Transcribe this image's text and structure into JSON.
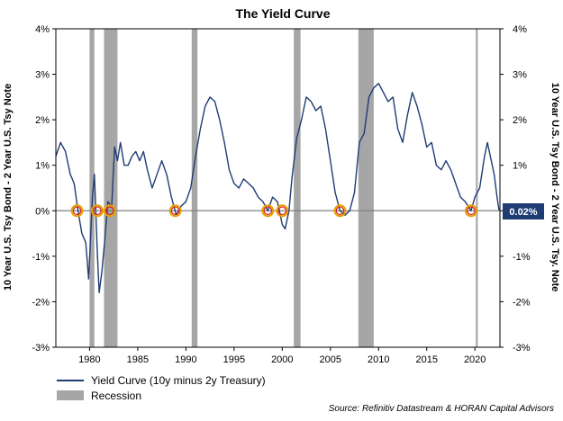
{
  "chart_data": {
    "type": "line",
    "title": "The Yield Curve",
    "ylabel_left": "10 Year U.S. Tsy Bond - 2 Year U.S. Tsy Note",
    "ylabel_right": "10 Year U.S. Tsy Bond - 2 Year U.S. Tsy. Note",
    "xlim": [
      1976.5,
      2022.6
    ],
    "ylim": [
      -3,
      4
    ],
    "yticks": [
      -3,
      -2,
      -1,
      0,
      1,
      2,
      3,
      4
    ],
    "ytick_labels": [
      "-3%",
      "-2%",
      "-1%",
      "0%",
      "1%",
      "2%",
      "3%",
      "4%"
    ],
    "xticks": [
      1980,
      1985,
      1990,
      1995,
      2000,
      2005,
      2010,
      2015,
      2020
    ],
    "xtick_labels": [
      "1980",
      "1985",
      "1990",
      "1995",
      "2000",
      "2005",
      "2010",
      "2015",
      "2020"
    ],
    "recessions": [
      {
        "start": 1980.0,
        "end": 1980.5
      },
      {
        "start": 1981.5,
        "end": 1982.9
      },
      {
        "start": 1990.6,
        "end": 1991.2
      },
      {
        "start": 2001.2,
        "end": 2001.9
      },
      {
        "start": 2007.9,
        "end": 2009.5
      },
      {
        "start": 2020.1,
        "end": 2020.3
      }
    ],
    "inversion_markers": [
      1978.7,
      1980.8,
      1982.1,
      1988.9,
      1998.5,
      2000.0,
      2006.0,
      2019.6
    ],
    "series": [
      {
        "name": "Yield Curve (10y minus 2y Treasury)",
        "color": "#1f3c74",
        "x": [
          1976.5,
          1977.0,
          1977.5,
          1978.0,
          1978.4,
          1978.8,
          1979.2,
          1979.6,
          1979.9,
          1980.1,
          1980.3,
          1980.5,
          1980.8,
          1981.0,
          1981.3,
          1981.6,
          1981.9,
          1982.3,
          1982.6,
          1982.9,
          1983.2,
          1983.6,
          1984.0,
          1984.4,
          1984.8,
          1985.2,
          1985.6,
          1986.0,
          1986.5,
          1987.0,
          1987.5,
          1988.0,
          1988.5,
          1989.0,
          1989.5,
          1990.0,
          1990.5,
          1991.0,
          1991.5,
          1992.0,
          1992.5,
          1993.0,
          1993.5,
          1994.0,
          1994.5,
          1995.0,
          1995.5,
          1996.0,
          1996.5,
          1997.0,
          1997.5,
          1998.0,
          1998.5,
          1999.0,
          1999.5,
          2000.0,
          2000.3,
          2000.7,
          2001.0,
          2001.5,
          2002.0,
          2002.5,
          2003.0,
          2003.5,
          2004.0,
          2004.5,
          2005.0,
          2005.5,
          2006.0,
          2006.5,
          2007.0,
          2007.5,
          2008.0,
          2008.5,
          2009.0,
          2009.5,
          2010.0,
          2010.5,
          2011.0,
          2011.5,
          2012.0,
          2012.5,
          2013.0,
          2013.5,
          2014.0,
          2014.5,
          2015.0,
          2015.5,
          2016.0,
          2016.5,
          2017.0,
          2017.5,
          2018.0,
          2018.5,
          2019.0,
          2019.6,
          2020.0,
          2020.5,
          2021.0,
          2021.3,
          2021.6,
          2022.0,
          2022.3,
          2022.5
        ],
        "values": [
          1.2,
          1.5,
          1.3,
          0.8,
          0.6,
          0.0,
          -0.5,
          -0.7,
          -1.5,
          -0.6,
          0.3,
          0.8,
          -0.9,
          -1.8,
          -1.3,
          -0.6,
          0.2,
          0.1,
          1.4,
          1.1,
          1.5,
          1.0,
          1.0,
          1.2,
          1.3,
          1.1,
          1.3,
          0.9,
          0.5,
          0.8,
          1.1,
          0.8,
          0.3,
          -0.1,
          0.1,
          0.2,
          0.5,
          1.2,
          1.8,
          2.3,
          2.5,
          2.4,
          2.0,
          1.5,
          0.9,
          0.6,
          0.5,
          0.7,
          0.6,
          0.5,
          0.3,
          0.2,
          0.0,
          0.3,
          0.2,
          -0.3,
          -0.4,
          0.0,
          0.7,
          1.6,
          2.0,
          2.5,
          2.4,
          2.2,
          2.3,
          1.8,
          1.1,
          0.4,
          0.0,
          -0.1,
          0.0,
          0.4,
          1.5,
          1.7,
          2.5,
          2.7,
          2.8,
          2.6,
          2.4,
          2.5,
          1.8,
          1.5,
          2.1,
          2.6,
          2.3,
          1.9,
          1.4,
          1.5,
          1.0,
          0.9,
          1.1,
          0.9,
          0.6,
          0.3,
          0.2,
          0.0,
          0.3,
          0.5,
          1.2,
          1.5,
          1.2,
          0.8,
          0.3,
          0.02
        ]
      }
    ],
    "current_value_label": "0.02%",
    "legend": {
      "series_label": "Yield Curve (10y minus 2y Treasury)",
      "recession_label": "Recession",
      "recession_color": "#a6a6a6"
    },
    "source": "Source: Refinitiv Datastream & HORAN Capital Advisors"
  }
}
